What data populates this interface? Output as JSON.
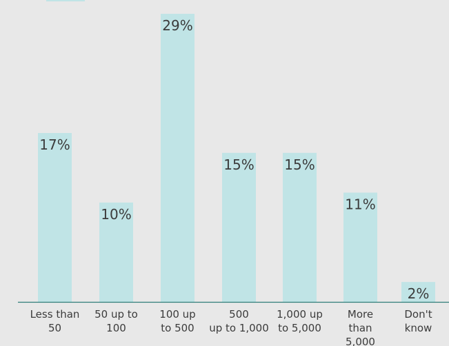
{
  "chart_data": {
    "type": "bar",
    "title": "",
    "xlabel": "",
    "ylabel": "",
    "ylim": [
      0,
      29
    ],
    "grid": false,
    "categories": [
      [
        "Less than",
        "50"
      ],
      [
        "50 up to",
        "100"
      ],
      [
        "100 up",
        "to 500"
      ],
      [
        "500",
        "up to 1,000"
      ],
      [
        "1,000 up",
        "to 5,000"
      ],
      [
        "More",
        "than",
        "5,000"
      ],
      [
        "Don't",
        "know"
      ]
    ],
    "values": [
      17,
      10,
      29,
      15,
      15,
      11,
      2
    ],
    "value_labels": [
      "17%",
      "10%",
      "29%",
      "15%",
      "15%",
      "11%",
      "2%"
    ],
    "colors": {
      "bar": "#c0e4e6",
      "baseline": "#2e7c78",
      "text": "#3b3b3b",
      "background": "#e8e8e8"
    }
  }
}
